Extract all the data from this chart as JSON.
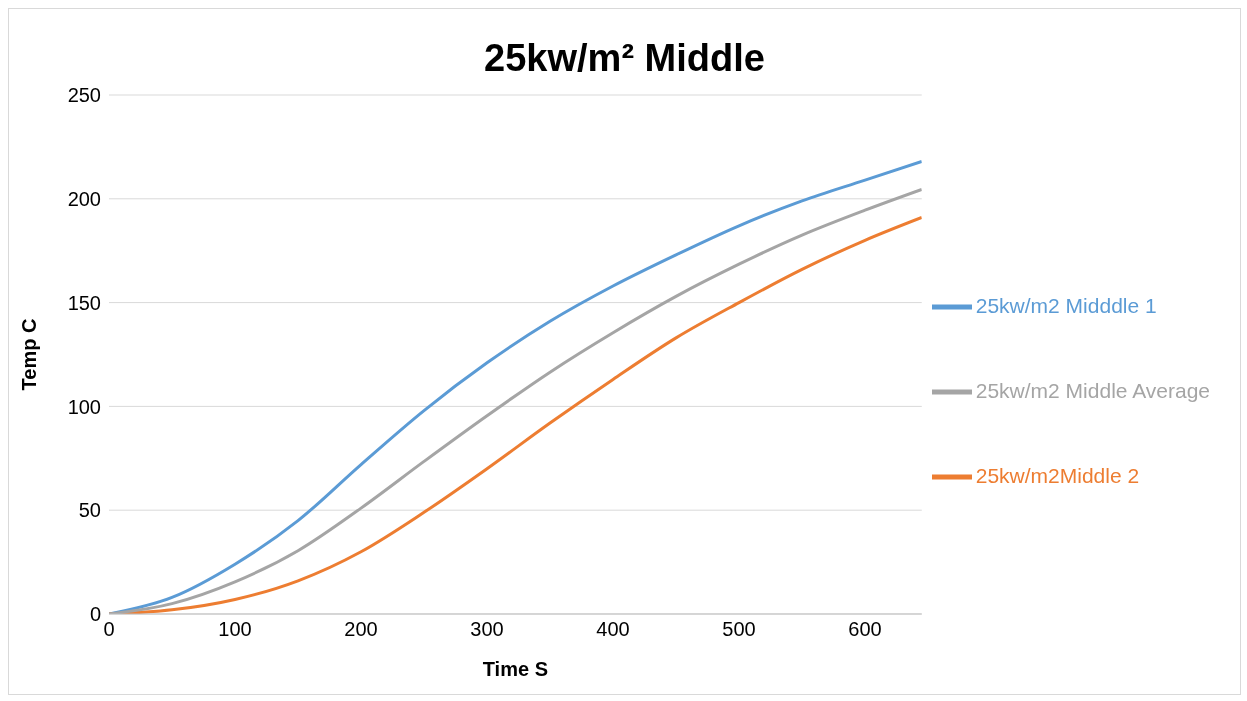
{
  "chart_data": {
    "type": "line",
    "title": "25kw/m² Middle",
    "xlabel": "Time S",
    "ylabel": "Temp C",
    "x": [
      0,
      50,
      100,
      150,
      200,
      250,
      300,
      350,
      400,
      450,
      500,
      550,
      600,
      645
    ],
    "series": [
      {
        "name": "25kw/m2 Midddle 1",
        "color": "#5b9bd5",
        "values": [
          0,
          8,
          24,
          45,
          72,
          98,
          121,
          141,
          158,
          173,
          187,
          199,
          209,
          218
        ]
      },
      {
        "name": "25kw/m2Middle 2",
        "color": "#ed7d31",
        "values": [
          0,
          2,
          7,
          16,
          30,
          49,
          70,
          92,
          113,
          133,
          150,
          166,
          180,
          191
        ]
      },
      {
        "name": "25kw/m2 Middle Average",
        "color": "#a5a5a5",
        "values": [
          0,
          5,
          15.5,
          30.5,
          51,
          73.5,
          95.5,
          116.5,
          135.5,
          153,
          168.5,
          182.5,
          194.5,
          204.5
        ]
      }
    ],
    "xlim": [
      0,
      645
    ],
    "xticks": [
      0,
      100,
      200,
      300,
      400,
      500,
      600
    ],
    "ylim": [
      0,
      250
    ],
    "yticks": [
      0,
      50,
      100,
      150,
      200,
      250
    ],
    "grid": "y",
    "legend": "right",
    "marker": "none",
    "line_style": "solid"
  }
}
